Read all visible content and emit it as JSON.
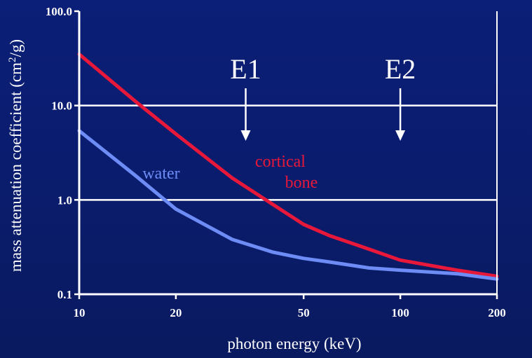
{
  "chart_data": {
    "type": "line",
    "xlabel": "photon energy (keV)",
    "ylabel_main": "mass attenuation coefficient (cm",
    "ylabel_sup": "2",
    "ylabel_tail": "/g)",
    "x_scale": "log",
    "y_scale": "log",
    "xlim": [
      10,
      200
    ],
    "ylim": [
      0.1,
      100
    ],
    "x_ticks": [
      10,
      20,
      50,
      100,
      200
    ],
    "x_tick_labels": [
      "10",
      "20",
      "50",
      "100",
      "200"
    ],
    "y_ticks": [
      0.1,
      1,
      10,
      100
    ],
    "y_tick_labels": [
      "0.1",
      "1.0",
      "10.0",
      "100.0"
    ],
    "grid": "horizontal at y = 1 and 10",
    "series": [
      {
        "label_lines": [
          "cortical",
          "bone"
        ],
        "color": "#e8183a",
        "points": [
          [
            10,
            35
          ],
          [
            15,
            11
          ],
          [
            20,
            5
          ],
          [
            30,
            1.7
          ],
          [
            40,
            0.9
          ],
          [
            50,
            0.55
          ],
          [
            60,
            0.42
          ],
          [
            80,
            0.3
          ],
          [
            100,
            0.23
          ],
          [
            150,
            0.18
          ],
          [
            200,
            0.155
          ]
        ]
      },
      {
        "label_lines": [
          "water"
        ],
        "color": "#6e8cf5",
        "points": [
          [
            10,
            5.4
          ],
          [
            15,
            1.8
          ],
          [
            20,
            0.8
          ],
          [
            30,
            0.38
          ],
          [
            40,
            0.28
          ],
          [
            50,
            0.24
          ],
          [
            60,
            0.22
          ],
          [
            80,
            0.19
          ],
          [
            100,
            0.18
          ],
          [
            150,
            0.165
          ],
          [
            200,
            0.145
          ]
        ]
      }
    ],
    "markers": [
      {
        "label": "E1",
        "x": 33
      },
      {
        "label": "E2",
        "x": 100
      }
    ],
    "colors": {
      "background": "#0b1f78",
      "axes": "#ffffff",
      "text": "#ffffff"
    }
  }
}
